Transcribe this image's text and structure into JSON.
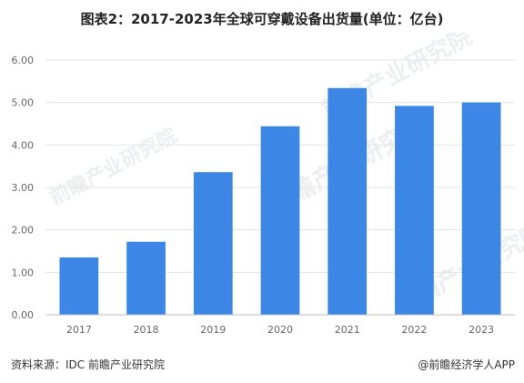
{
  "title": "图表2：2017-2023年全球可穿戴设备出货量(单位：亿台)",
  "footer": {
    "source": "资料来源：IDC 前瞻产业研究院",
    "brand": "@前瞻经济学人APP"
  },
  "watermark": {
    "text": "前瞻产业研究院"
  },
  "chart_data": {
    "type": "bar",
    "categories": [
      "2017",
      "2018",
      "2019",
      "2020",
      "2021",
      "2022",
      "2023"
    ],
    "values": [
      1.35,
      1.72,
      3.36,
      4.44,
      5.34,
      4.92,
      5.0
    ],
    "title": "图表2：2017-2023年全球可穿戴设备出货量(单位：亿台)",
    "xlabel": "",
    "ylabel": "",
    "ylim": [
      0,
      6
    ],
    "y_ticks": [
      "0.00",
      "1.00",
      "2.00",
      "3.00",
      "4.00",
      "5.00",
      "6.00"
    ],
    "grid": true,
    "colors": {
      "bar": "#3C87E6",
      "grid": "#E3E3E3",
      "axis": "#BDBDBD",
      "tick_text": "#666666"
    }
  }
}
